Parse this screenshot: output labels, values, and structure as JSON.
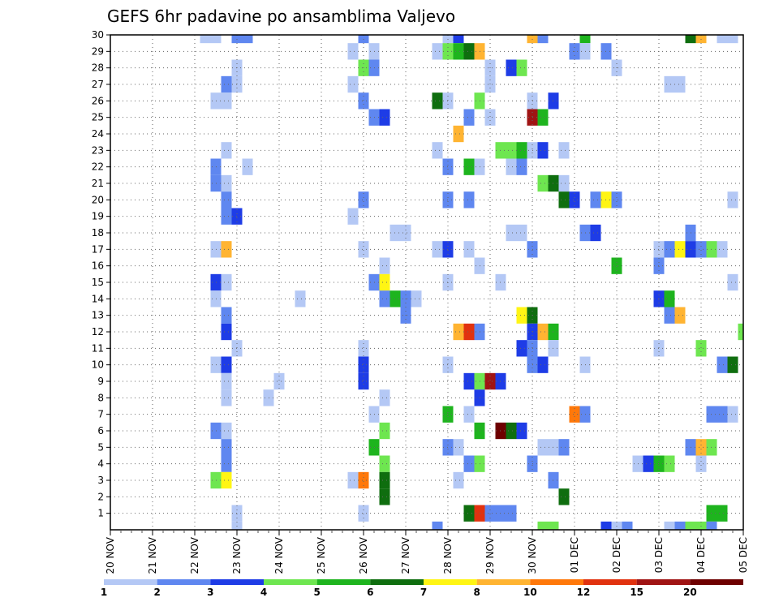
{
  "chart_data": {
    "type": "heatmap",
    "title": "GEFS 6hr padavine po ansamblima Valjevo",
    "xlabel": "",
    "ylabel": "",
    "x_tick_labels": [
      "20 NOV",
      "21 NOV",
      "22 NOV",
      "23 NOV",
      "24 NOV",
      "25 NOV",
      "26 NOV",
      "27 NOV",
      "28 NOV",
      "29 NOV",
      "30 NOV",
      "01 DEC",
      "02 DEC",
      "03 DEC",
      "04 DEC",
      "05 DEC"
    ],
    "x_step_unit": "6h",
    "x_steps_total": 60,
    "y_tick_labels": [
      "1",
      "2",
      "3",
      "4",
      "5",
      "6",
      "7",
      "8",
      "9",
      "10",
      "11",
      "12",
      "13",
      "14",
      "15",
      "16",
      "17",
      "18",
      "19",
      "20",
      "21",
      "22",
      "23",
      "24",
      "25",
      "26",
      "27",
      "28",
      "29",
      "30"
    ],
    "y_range": [
      0,
      30
    ],
    "grid": true,
    "colorbar": {
      "placement": "bottom",
      "labels": [
        "1",
        "2",
        "3",
        "4",
        "5",
        "6",
        "7",
        "8",
        "10",
        "12",
        "15",
        "20"
      ],
      "colors": [
        "#b4c8f5",
        "#5f87f0",
        "#1e3ce6",
        "#6ee650",
        "#1eb41e",
        "#0f6e0f",
        "#fff514",
        "#ffb432",
        "#ff780a",
        "#e1320f",
        "#a01414",
        "#6e0000"
      ]
    },
    "cells": [
      {
        "m": 30,
        "t": 9,
        "c": 0
      },
      {
        "m": 30,
        "t": 10,
        "c": 0
      },
      {
        "m": 30,
        "t": 12,
        "c": 1
      },
      {
        "m": 30,
        "t": 13,
        "c": 1
      },
      {
        "m": 30,
        "t": 24,
        "c": 1
      },
      {
        "m": 30,
        "t": 32,
        "c": 0
      },
      {
        "m": 30,
        "t": 33,
        "c": 2
      },
      {
        "m": 30,
        "t": 40,
        "c": 7
      },
      {
        "m": 30,
        "t": 41,
        "c": 1
      },
      {
        "m": 30,
        "t": 45,
        "c": 4
      },
      {
        "m": 30,
        "t": 55,
        "c": 5
      },
      {
        "m": 30,
        "t": 56,
        "c": 7
      },
      {
        "m": 30,
        "t": 58,
        "c": 0
      },
      {
        "m": 30,
        "t": 59,
        "c": 0
      },
      {
        "m": 29,
        "t": 23,
        "c": 0
      },
      {
        "m": 29,
        "t": 25,
        "c": 0
      },
      {
        "m": 29,
        "t": 31,
        "c": 0
      },
      {
        "m": 29,
        "t": 32,
        "c": 3
      },
      {
        "m": 29,
        "t": 33,
        "c": 4
      },
      {
        "m": 29,
        "t": 34,
        "c": 5
      },
      {
        "m": 29,
        "t": 35,
        "c": 7
      },
      {
        "m": 29,
        "t": 44,
        "c": 1
      },
      {
        "m": 29,
        "t": 45,
        "c": 0
      },
      {
        "m": 29,
        "t": 47,
        "c": 1
      },
      {
        "m": 28,
        "t": 12,
        "c": 0
      },
      {
        "m": 28,
        "t": 24,
        "c": 3
      },
      {
        "m": 28,
        "t": 25,
        "c": 1
      },
      {
        "m": 28,
        "t": 36,
        "c": 0
      },
      {
        "m": 28,
        "t": 38,
        "c": 2
      },
      {
        "m": 28,
        "t": 39,
        "c": 3
      },
      {
        "m": 28,
        "t": 48,
        "c": 0
      },
      {
        "m": 27,
        "t": 11,
        "c": 1
      },
      {
        "m": 27,
        "t": 12,
        "c": 0
      },
      {
        "m": 27,
        "t": 23,
        "c": 0
      },
      {
        "m": 27,
        "t": 36,
        "c": 0
      },
      {
        "m": 27,
        "t": 53,
        "c": 0
      },
      {
        "m": 27,
        "t": 54,
        "c": 0
      },
      {
        "m": 26,
        "t": 10,
        "c": 0
      },
      {
        "m": 26,
        "t": 11,
        "c": 0
      },
      {
        "m": 26,
        "t": 24,
        "c": 1
      },
      {
        "m": 26,
        "t": 31,
        "c": 5
      },
      {
        "m": 26,
        "t": 32,
        "c": 0
      },
      {
        "m": 26,
        "t": 35,
        "c": 3
      },
      {
        "m": 26,
        "t": 40,
        "c": 0
      },
      {
        "m": 26,
        "t": 42,
        "c": 2
      },
      {
        "m": 25,
        "t": 25,
        "c": 1
      },
      {
        "m": 25,
        "t": 26,
        "c": 2
      },
      {
        "m": 25,
        "t": 34,
        "c": 1
      },
      {
        "m": 25,
        "t": 36,
        "c": 0
      },
      {
        "m": 25,
        "t": 40,
        "c": 10
      },
      {
        "m": 25,
        "t": 41,
        "c": 4
      },
      {
        "m": 24,
        "t": 33,
        "c": 7
      },
      {
        "m": 23,
        "t": 11,
        "c": 0
      },
      {
        "m": 23,
        "t": 31,
        "c": 0
      },
      {
        "m": 23,
        "t": 37,
        "c": 3
      },
      {
        "m": 23,
        "t": 38,
        "c": 3
      },
      {
        "m": 23,
        "t": 39,
        "c": 4
      },
      {
        "m": 23,
        "t": 40,
        "c": 0
      },
      {
        "m": 23,
        "t": 41,
        "c": 2
      },
      {
        "m": 23,
        "t": 43,
        "c": 0
      },
      {
        "m": 22,
        "t": 10,
        "c": 1
      },
      {
        "m": 22,
        "t": 13,
        "c": 0
      },
      {
        "m": 22,
        "t": 32,
        "c": 1
      },
      {
        "m": 22,
        "t": 34,
        "c": 4
      },
      {
        "m": 22,
        "t": 35,
        "c": 0
      },
      {
        "m": 22,
        "t": 38,
        "c": 0
      },
      {
        "m": 22,
        "t": 39,
        "c": 1
      },
      {
        "m": 21,
        "t": 10,
        "c": 1
      },
      {
        "m": 21,
        "t": 11,
        "c": 0
      },
      {
        "m": 21,
        "t": 41,
        "c": 3
      },
      {
        "m": 21,
        "t": 42,
        "c": 5
      },
      {
        "m": 21,
        "t": 43,
        "c": 0
      },
      {
        "m": 20,
        "t": 11,
        "c": 1
      },
      {
        "m": 20,
        "t": 24,
        "c": 1
      },
      {
        "m": 20,
        "t": 32,
        "c": 1
      },
      {
        "m": 20,
        "t": 34,
        "c": 1
      },
      {
        "m": 20,
        "t": 43,
        "c": 5
      },
      {
        "m": 20,
        "t": 44,
        "c": 2
      },
      {
        "m": 20,
        "t": 46,
        "c": 1
      },
      {
        "m": 20,
        "t": 47,
        "c": 6
      },
      {
        "m": 20,
        "t": 48,
        "c": 1
      },
      {
        "m": 20,
        "t": 59,
        "c": 0
      },
      {
        "m": 19,
        "t": 11,
        "c": 1
      },
      {
        "m": 19,
        "t": 12,
        "c": 2
      },
      {
        "m": 19,
        "t": 23,
        "c": 0
      },
      {
        "m": 18,
        "t": 27,
        "c": 0
      },
      {
        "m": 18,
        "t": 28,
        "c": 0
      },
      {
        "m": 18,
        "t": 38,
        "c": 0
      },
      {
        "m": 18,
        "t": 39,
        "c": 0
      },
      {
        "m": 18,
        "t": 45,
        "c": 1
      },
      {
        "m": 18,
        "t": 46,
        "c": 2
      },
      {
        "m": 18,
        "t": 55,
        "c": 1
      },
      {
        "m": 17,
        "t": 10,
        "c": 0
      },
      {
        "m": 17,
        "t": 11,
        "c": 7
      },
      {
        "m": 17,
        "t": 24,
        "c": 0
      },
      {
        "m": 17,
        "t": 31,
        "c": 0
      },
      {
        "m": 17,
        "t": 32,
        "c": 2
      },
      {
        "m": 17,
        "t": 34,
        "c": 0
      },
      {
        "m": 17,
        "t": 40,
        "c": 1
      },
      {
        "m": 17,
        "t": 52,
        "c": 0
      },
      {
        "m": 17,
        "t": 53,
        "c": 1
      },
      {
        "m": 17,
        "t": 54,
        "c": 6
      },
      {
        "m": 17,
        "t": 55,
        "c": 2
      },
      {
        "m": 17,
        "t": 56,
        "c": 1
      },
      {
        "m": 17,
        "t": 57,
        "c": 3
      },
      {
        "m": 17,
        "t": 58,
        "c": 0
      },
      {
        "m": 16,
        "t": 26,
        "c": 0
      },
      {
        "m": 16,
        "t": 35,
        "c": 0
      },
      {
        "m": 16,
        "t": 48,
        "c": 4
      },
      {
        "m": 16,
        "t": 52,
        "c": 1
      },
      {
        "m": 15,
        "t": 10,
        "c": 2
      },
      {
        "m": 15,
        "t": 11,
        "c": 0
      },
      {
        "m": 15,
        "t": 25,
        "c": 1
      },
      {
        "m": 15,
        "t": 26,
        "c": 6
      },
      {
        "m": 15,
        "t": 32,
        "c": 0
      },
      {
        "m": 15,
        "t": 37,
        "c": 0
      },
      {
        "m": 15,
        "t": 59,
        "c": 0
      },
      {
        "m": 14,
        "t": 10,
        "c": 0
      },
      {
        "m": 14,
        "t": 18,
        "c": 0
      },
      {
        "m": 14,
        "t": 26,
        "c": 1
      },
      {
        "m": 14,
        "t": 27,
        "c": 4
      },
      {
        "m": 14,
        "t": 28,
        "c": 1
      },
      {
        "m": 14,
        "t": 29,
        "c": 0
      },
      {
        "m": 14,
        "t": 52,
        "c": 2
      },
      {
        "m": 14,
        "t": 53,
        "c": 4
      },
      {
        "m": 13,
        "t": 11,
        "c": 1
      },
      {
        "m": 13,
        "t": 28,
        "c": 1
      },
      {
        "m": 13,
        "t": 39,
        "c": 6
      },
      {
        "m": 13,
        "t": 40,
        "c": 5
      },
      {
        "m": 13,
        "t": 53,
        "c": 1
      },
      {
        "m": 13,
        "t": 54,
        "c": 7
      },
      {
        "m": 12,
        "t": 11,
        "c": 2
      },
      {
        "m": 12,
        "t": 33,
        "c": 7
      },
      {
        "m": 12,
        "t": 34,
        "c": 9
      },
      {
        "m": 12,
        "t": 35,
        "c": 1
      },
      {
        "m": 12,
        "t": 40,
        "c": 2
      },
      {
        "m": 12,
        "t": 41,
        "c": 7
      },
      {
        "m": 12,
        "t": 42,
        "c": 4
      },
      {
        "m": 12,
        "t": 60,
        "c": 3
      },
      {
        "m": 11,
        "t": 12,
        "c": 0
      },
      {
        "m": 11,
        "t": 24,
        "c": 0
      },
      {
        "m": 11,
        "t": 39,
        "c": 2
      },
      {
        "m": 11,
        "t": 40,
        "c": 1
      },
      {
        "m": 11,
        "t": 42,
        "c": 0
      },
      {
        "m": 11,
        "t": 52,
        "c": 0
      },
      {
        "m": 11,
        "t": 56,
        "c": 3
      },
      {
        "m": 10,
        "t": 10,
        "c": 0
      },
      {
        "m": 10,
        "t": 11,
        "c": 2
      },
      {
        "m": 10,
        "t": 24,
        "c": 2
      },
      {
        "m": 10,
        "t": 32,
        "c": 0
      },
      {
        "m": 10,
        "t": 40,
        "c": 1
      },
      {
        "m": 10,
        "t": 41,
        "c": 2
      },
      {
        "m": 10,
        "t": 45,
        "c": 0
      },
      {
        "m": 10,
        "t": 58,
        "c": 1
      },
      {
        "m": 10,
        "t": 59,
        "c": 5
      },
      {
        "m": 9,
        "t": 11,
        "c": 0
      },
      {
        "m": 9,
        "t": 16,
        "c": 0
      },
      {
        "m": 9,
        "t": 24,
        "c": 2
      },
      {
        "m": 9,
        "t": 34,
        "c": 2
      },
      {
        "m": 9,
        "t": 35,
        "c": 3
      },
      {
        "m": 9,
        "t": 36,
        "c": 10
      },
      {
        "m": 9,
        "t": 37,
        "c": 2
      },
      {
        "m": 8,
        "t": 11,
        "c": 0
      },
      {
        "m": 8,
        "t": 15,
        "c": 0
      },
      {
        "m": 8,
        "t": 26,
        "c": 0
      },
      {
        "m": 8,
        "t": 35,
        "c": 2
      },
      {
        "m": 7,
        "t": 25,
        "c": 0
      },
      {
        "m": 7,
        "t": 32,
        "c": 4
      },
      {
        "m": 7,
        "t": 34,
        "c": 0
      },
      {
        "m": 7,
        "t": 44,
        "c": 8
      },
      {
        "m": 7,
        "t": 45,
        "c": 1
      },
      {
        "m": 7,
        "t": 57,
        "c": 1
      },
      {
        "m": 7,
        "t": 58,
        "c": 1
      },
      {
        "m": 7,
        "t": 59,
        "c": 0
      },
      {
        "m": 6,
        "t": 10,
        "c": 1
      },
      {
        "m": 6,
        "t": 11,
        "c": 0
      },
      {
        "m": 6,
        "t": 26,
        "c": 3
      },
      {
        "m": 6,
        "t": 35,
        "c": 4
      },
      {
        "m": 6,
        "t": 37,
        "c": 11
      },
      {
        "m": 6,
        "t": 38,
        "c": 5
      },
      {
        "m": 6,
        "t": 39,
        "c": 2
      },
      {
        "m": 5,
        "t": 11,
        "c": 1
      },
      {
        "m": 5,
        "t": 25,
        "c": 4
      },
      {
        "m": 5,
        "t": 32,
        "c": 1
      },
      {
        "m": 5,
        "t": 33,
        "c": 0
      },
      {
        "m": 5,
        "t": 41,
        "c": 0
      },
      {
        "m": 5,
        "t": 42,
        "c": 0
      },
      {
        "m": 5,
        "t": 43,
        "c": 1
      },
      {
        "m": 5,
        "t": 55,
        "c": 1
      },
      {
        "m": 5,
        "t": 56,
        "c": 7
      },
      {
        "m": 5,
        "t": 57,
        "c": 3
      },
      {
        "m": 4,
        "t": 11,
        "c": 1
      },
      {
        "m": 4,
        "t": 26,
        "c": 3
      },
      {
        "m": 4,
        "t": 34,
        "c": 1
      },
      {
        "m": 4,
        "t": 35,
        "c": 3
      },
      {
        "m": 4,
        "t": 40,
        "c": 1
      },
      {
        "m": 4,
        "t": 50,
        "c": 0
      },
      {
        "m": 4,
        "t": 51,
        "c": 2
      },
      {
        "m": 4,
        "t": 52,
        "c": 4
      },
      {
        "m": 4,
        "t": 53,
        "c": 3
      },
      {
        "m": 4,
        "t": 56,
        "c": 0
      },
      {
        "m": 3,
        "t": 10,
        "c": 3
      },
      {
        "m": 3,
        "t": 11,
        "c": 6
      },
      {
        "m": 3,
        "t": 23,
        "c": 0
      },
      {
        "m": 3,
        "t": 24,
        "c": 8
      },
      {
        "m": 3,
        "t": 26,
        "c": 5
      },
      {
        "m": 3,
        "t": 33,
        "c": 0
      },
      {
        "m": 3,
        "t": 42,
        "c": 1
      },
      {
        "m": 2,
        "t": 26,
        "c": 5
      },
      {
        "m": 2,
        "t": 43,
        "c": 5
      },
      {
        "m": 1,
        "t": 12,
        "c": 0
      },
      {
        "m": 1,
        "t": 24,
        "c": 0
      },
      {
        "m": 1,
        "t": 34,
        "c": 5
      },
      {
        "m": 1,
        "t": 35,
        "c": 9
      },
      {
        "m": 1,
        "t": 36,
        "c": 1
      },
      {
        "m": 1,
        "t": 37,
        "c": 1
      },
      {
        "m": 1,
        "t": 38,
        "c": 1
      },
      {
        "m": 1,
        "t": 57,
        "c": 4
      },
      {
        "m": 1,
        "t": 58,
        "c": 4
      },
      {
        "m": 0,
        "t": 12,
        "c": 0
      },
      {
        "m": 0,
        "t": 31,
        "c": 1
      },
      {
        "m": 0,
        "t": 41,
        "c": 3
      },
      {
        "m": 0,
        "t": 42,
        "c": 3
      },
      {
        "m": 0,
        "t": 47,
        "c": 2
      },
      {
        "m": 0,
        "t": 48,
        "c": 0
      },
      {
        "m": 0,
        "t": 49,
        "c": 1
      },
      {
        "m": 0,
        "t": 53,
        "c": 0
      },
      {
        "m": 0,
        "t": 54,
        "c": 1
      },
      {
        "m": 0,
        "t": 55,
        "c": 3
      },
      {
        "m": 0,
        "t": 56,
        "c": 3
      },
      {
        "m": 0,
        "t": 57,
        "c": 1
      }
    ]
  }
}
